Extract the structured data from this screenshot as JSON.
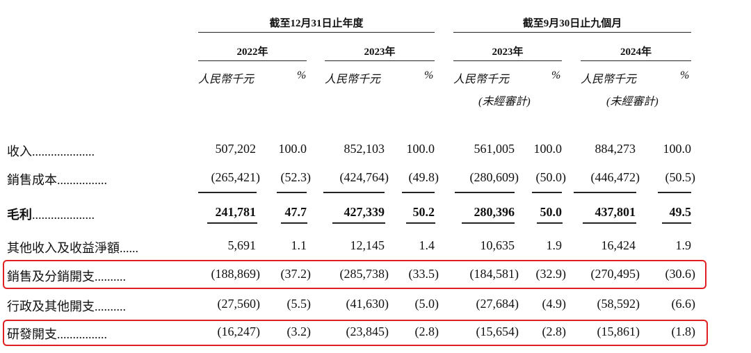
{
  "header": {
    "period_fy": "截至12月31日止年度",
    "period_9m": "截至9月30日止九個月",
    "years": [
      "2022年",
      "2023年",
      "2023年",
      "2024年"
    ],
    "unit_amount": "人民幣千元",
    "unit_pct": "%",
    "unaudited": "(未經審計)"
  },
  "rows": [
    {
      "label": "收入",
      "dots": "....................",
      "values": [
        "507,202",
        "100.0",
        "852,103",
        "100.0",
        "561,005",
        "100.0",
        "884,273",
        "100.0"
      ]
    },
    {
      "label": "銷售成本",
      "dots": "................",
      "values": [
        "(265,421)",
        "(52.3)",
        "(424,764)",
        "(49.8)",
        "(280,609)",
        "(50.0)",
        "(446,472)",
        "(50.5)"
      ]
    },
    {
      "label": "毛利",
      "dots": "....................",
      "values": [
        "241,781",
        "47.7",
        "427,339",
        "50.2",
        "280,396",
        "50.0",
        "437,801",
        "49.5"
      ]
    },
    {
      "label": "其他收入及收益淨額",
      "dots": "......",
      "values": [
        "5,691",
        "1.1",
        "12,145",
        "1.4",
        "10,635",
        "1.9",
        "16,424",
        "1.9"
      ]
    },
    {
      "label": "銷售及分銷開支",
      "dots": "..........",
      "values": [
        "(188,869)",
        "(37.2)",
        "(285,738)",
        "(33.5)",
        "(184,581)",
        "(32.9)",
        "(270,495)",
        "(30.6)"
      ]
    },
    {
      "label": "行政及其他開支",
      "dots": "..........",
      "values": [
        "(27,560)",
        "(5.5)",
        "(41,630)",
        "(5.0)",
        "(27,684)",
        "(4.9)",
        "(58,592)",
        "(6.6)"
      ]
    },
    {
      "label": "研發開支",
      "dots": "................",
      "values": [
        "(16,247)",
        "(3.2)",
        "(23,845)",
        "(2.8)",
        "(15,654)",
        "(2.8)",
        "(15,861)",
        "(1.8)"
      ]
    }
  ],
  "highlight_color": "#e02020"
}
